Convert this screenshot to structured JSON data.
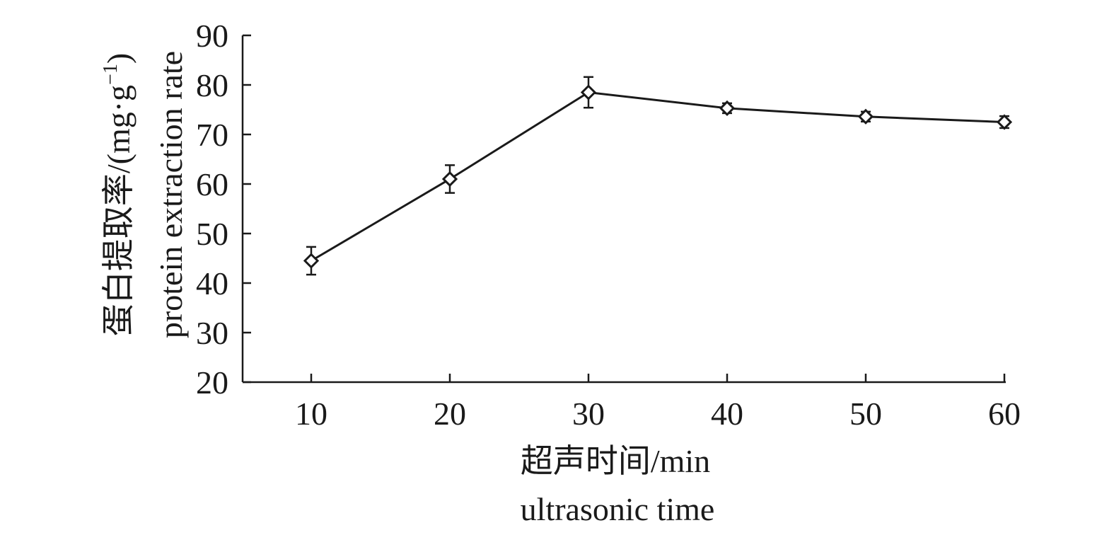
{
  "chart_data": {
    "type": "line",
    "xlabel_cn": "超声时间/min",
    "xlabel_en": "ultrasonic time",
    "ylabel_cn": "蛋白提取率/(mg·g",
    "ylabel_sup": "−1",
    "ylabel_close": ")",
    "ylabel_en": "protein extraction rate",
    "x": [
      10,
      20,
      30,
      40,
      50,
      60
    ],
    "x_tick_labels": [
      "10",
      "20",
      "30",
      "40",
      "50",
      "60"
    ],
    "y_tick_labels": [
      "20",
      "30",
      "40",
      "50",
      "60",
      "70",
      "80",
      "90"
    ],
    "ylim": [
      20,
      90
    ],
    "series": [
      {
        "values": [
          44.5,
          61,
          78.5,
          75.3,
          73.6,
          72.5
        ],
        "errors": [
          2.8,
          2.8,
          3.1,
          1.0,
          1.0,
          1.2
        ],
        "marker": "diamond-open",
        "color": "#1a1a1a"
      }
    ],
    "grid": false,
    "legend": "none"
  }
}
